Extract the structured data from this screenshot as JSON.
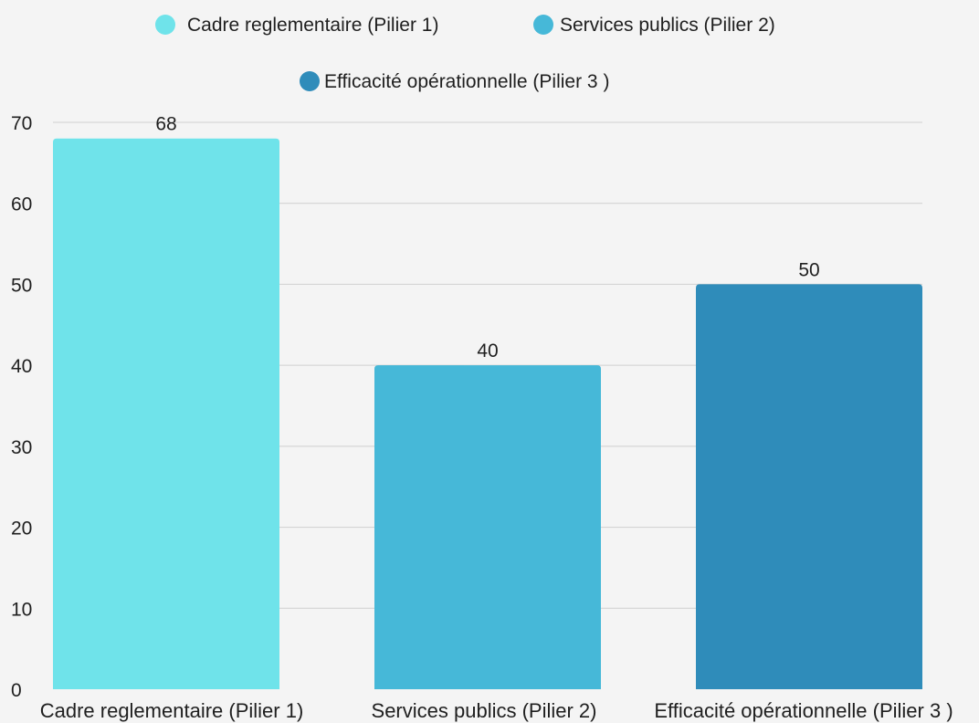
{
  "chart_data": {
    "type": "bar",
    "categories": [
      "Cadre reglementaire (Pilier 1)",
      "Services publics (Pilier 2)",
      "Efficacité opérationnelle (Pilier 3 )"
    ],
    "values": [
      68,
      40,
      50
    ],
    "data_labels": [
      "68",
      "40",
      "50"
    ],
    "colors": [
      "#6fe3ea",
      "#46b8d8",
      "#2f8cba"
    ],
    "legend": {
      "placement": "top",
      "entries": [
        "Cadre reglementaire (Pilier 1)",
        "Services publics (Pilier 2)",
        "Efficacité opérationnelle (Pilier 3 )"
      ]
    },
    "ylim": [
      0,
      70
    ],
    "yticks": [
      "0",
      "10",
      "20",
      "30",
      "40",
      "50",
      "60",
      "70"
    ],
    "grid": true,
    "title": "",
    "xlabel": "",
    "ylabel": ""
  }
}
